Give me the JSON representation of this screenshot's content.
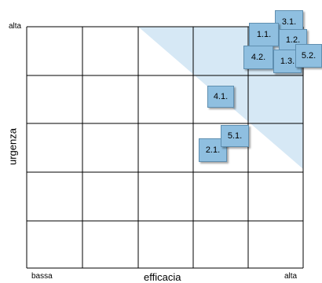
{
  "axes": {
    "y_title": "urgenza",
    "x_title": "efficacia",
    "y_high": "alta",
    "x_low": "bassa",
    "x_high": "alta"
  },
  "colors": {
    "highlight": "#d6e8f5",
    "note_fill": "#8fbfe0",
    "note_border": "#5f8fb0",
    "grid": "#000000"
  },
  "notes": {
    "n31": "3.1.",
    "n11": "1.1.",
    "n12": "1.2.",
    "n42": "4.2.",
    "n13": "1.3.",
    "n52": "5.2.",
    "n41": "4.1.",
    "n51": "5.1.",
    "n21": "2.1."
  }
}
